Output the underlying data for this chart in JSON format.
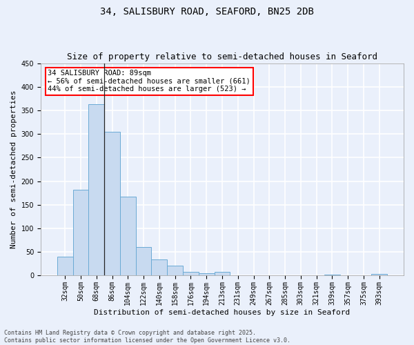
{
  "title_line1": "34, SALISBURY ROAD, SEAFORD, BN25 2DB",
  "title_line2": "Size of property relative to semi-detached houses in Seaford",
  "xlabel": "Distribution of semi-detached houses by size in Seaford",
  "ylabel": "Number of semi-detached properties",
  "bar_labels": [
    "32sqm",
    "50sqm",
    "68sqm",
    "86sqm",
    "104sqm",
    "122sqm",
    "140sqm",
    "158sqm",
    "176sqm",
    "194sqm",
    "213sqm",
    "231sqm",
    "249sqm",
    "267sqm",
    "285sqm",
    "303sqm",
    "321sqm",
    "339sqm",
    "357sqm",
    "375sqm",
    "393sqm"
  ],
  "bar_values": [
    39,
    182,
    364,
    305,
    167,
    60,
    34,
    20,
    8,
    5,
    8,
    0,
    0,
    0,
    0,
    0,
    0,
    2,
    0,
    0,
    3
  ],
  "bar_color": "#c8daf0",
  "bar_edge_color": "#6aaad4",
  "annotation_text": "34 SALISBURY ROAD: 89sqm\n← 56% of semi-detached houses are smaller (661)\n44% of semi-detached houses are larger (523) →",
  "annotation_box_color": "white",
  "annotation_box_edge_color": "red",
  "vline_x": 2.5,
  "ylim": [
    0,
    450
  ],
  "yticks": [
    0,
    50,
    100,
    150,
    200,
    250,
    300,
    350,
    400,
    450
  ],
  "background_color": "#eaf0fb",
  "grid_color": "white",
  "footer_text": "Contains HM Land Registry data © Crown copyright and database right 2025.\nContains public sector information licensed under the Open Government Licence v3.0.",
  "title_fontsize": 10,
  "subtitle_fontsize": 9,
  "axis_label_fontsize": 8,
  "tick_fontsize": 7,
  "annotation_fontsize": 7.5,
  "footer_fontsize": 6
}
